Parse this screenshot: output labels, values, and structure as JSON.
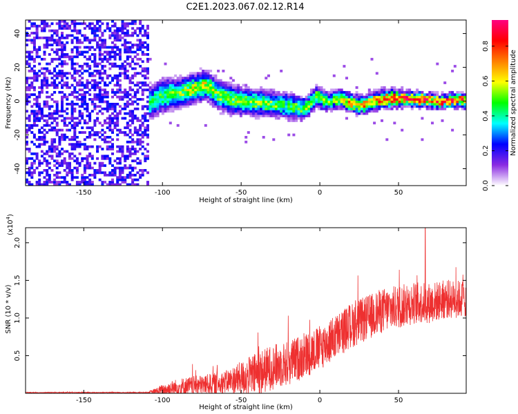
{
  "title": "C2E1.2023.067.02.12.R14",
  "chart_data": [
    {
      "type": "heatmap",
      "xlabel": "Height of straight line (km)",
      "ylabel": "Frequency (Hz)",
      "xlim": [
        -187,
        93
      ],
      "ylim": [
        -50,
        48
      ],
      "xticks": [
        -150,
        -100,
        -50,
        0,
        50
      ],
      "xtick_labels": [
        "-150",
        "-100",
        "-50",
        "0",
        "50"
      ],
      "yticks": [
        -40,
        -20,
        0,
        20,
        40
      ],
      "ytick_labels": [
        "-40",
        "-20",
        "0",
        "20",
        "40"
      ],
      "noise_region_x": [
        -187,
        -110
      ],
      "signal_start_x": -110,
      "ridge": {
        "x": [
          -110,
          -100,
          -90,
          -80,
          -73,
          -65,
          -55,
          -45,
          -35,
          -25,
          -18,
          -10,
          -3,
          5,
          12,
          20,
          28,
          35,
          45,
          55,
          65,
          75,
          85,
          93
        ],
        "y": [
          -2,
          3,
          4,
          7,
          9,
          3,
          0,
          -1,
          -2,
          -3,
          -4,
          -5,
          2,
          -1,
          1,
          -2,
          -3,
          0,
          1,
          1,
          0,
          -1,
          0,
          0
        ],
        "halfwidth_hz": [
          9,
          9,
          8,
          8,
          8,
          8,
          8,
          7,
          7,
          7,
          7,
          6,
          6,
          5,
          5,
          5,
          5,
          5,
          5,
          4,
          4,
          4,
          4,
          4
        ],
        "peak_amplitude": [
          0.45,
          0.5,
          0.55,
          0.6,
          0.6,
          0.55,
          0.55,
          0.55,
          0.55,
          0.5,
          0.5,
          0.55,
          0.6,
          0.6,
          0.65,
          0.7,
          0.7,
          0.75,
          0.85,
          0.9,
          0.9,
          0.85,
          0.85,
          0.85
        ]
      },
      "colorbar": {
        "label": "Normalized spectral amplitude",
        "range": [
          0,
          0.95
        ],
        "ticks": [
          0.0,
          0.2,
          0.4,
          0.6,
          0.8
        ],
        "tick_labels": [
          "0.0",
          "0.2",
          "0.4",
          "0.6",
          "0.8"
        ],
        "colors": [
          "#ffffff",
          "#8a2be2",
          "#0000ff",
          "#00ffff",
          "#00ff00",
          "#ffff00",
          "#ff8000",
          "#ff0000",
          "#ff0080"
        ]
      }
    },
    {
      "type": "line",
      "xlabel": "Height of straight line (km)",
      "ylabel": "SNR (10 * v/v)",
      "y_multiplier": "(x10",
      "y_multiplier_exp": "4",
      "y_multiplier_close": ")",
      "xlim": [
        -187,
        93
      ],
      "ylim": [
        0,
        2.2
      ],
      "xticks": [
        -150,
        -100,
        -50,
        0,
        50
      ],
      "xtick_labels": [
        "-150",
        "-100",
        "-50",
        "0",
        "50"
      ],
      "yticks": [
        0.5,
        1.0,
        1.5,
        2.0
      ],
      "ytick_labels": [
        "0.5",
        "1.0",
        "1.5",
        "2.0"
      ],
      "color": "#ee3030",
      "trend": {
        "x": [
          -187,
          -110,
          -105,
          -100,
          -90,
          -80,
          -70,
          -60,
          -50,
          -40,
          -30,
          -20,
          -10,
          0,
          10,
          20,
          30,
          40,
          50,
          60,
          70,
          80,
          93
        ],
        "y": [
          0.01,
          0.01,
          0.02,
          0.04,
          0.08,
          0.1,
          0.12,
          0.15,
          0.2,
          0.25,
          0.35,
          0.4,
          0.5,
          0.6,
          0.75,
          0.9,
          1.0,
          1.1,
          1.15,
          1.2,
          1.2,
          1.25,
          1.25
        ]
      },
      "noise_amplitude": {
        "x": [
          -187,
          -110,
          -100,
          -90,
          -60,
          -40,
          -20,
          0,
          20,
          40,
          93
        ],
        "y": [
          0.005,
          0.005,
          0.08,
          0.12,
          0.15,
          0.3,
          0.3,
          0.3,
          0.3,
          0.3,
          0.25
        ]
      },
      "peak": {
        "x": 67,
        "y": 2.22
      }
    }
  ]
}
